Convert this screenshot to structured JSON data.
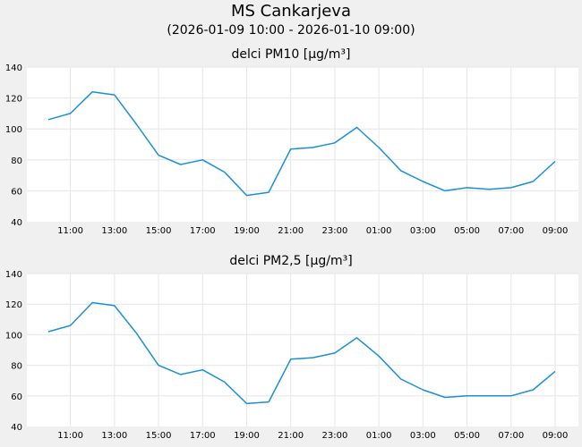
{
  "header": {
    "title": "MS Cankarjeva",
    "subtitle": "(2026-01-09 10:00 - 2026-01-10 09:00)"
  },
  "colors": {
    "line": "#1a8fd6",
    "plot_bg": "#ffffff",
    "grid": "#e6e6e6",
    "page_bg": "#f0f0f0"
  },
  "chart_data": [
    {
      "type": "line",
      "title": "delci PM10 [µg/m³]",
      "xlabel": "",
      "ylabel": "",
      "ylim": [
        40,
        140
      ],
      "yticks": [
        40,
        60,
        80,
        100,
        120,
        140
      ],
      "x": [
        "10:00",
        "11:00",
        "12:00",
        "13:00",
        "14:00",
        "15:00",
        "16:00",
        "17:00",
        "18:00",
        "19:00",
        "20:00",
        "21:00",
        "22:00",
        "23:00",
        "00:00",
        "01:00",
        "02:00",
        "03:00",
        "04:00",
        "05:00",
        "06:00",
        "07:00",
        "08:00",
        "09:00"
      ],
      "xtick_labels": [
        "11:00",
        "13:00",
        "15:00",
        "17:00",
        "19:00",
        "21:00",
        "23:00",
        "01:00",
        "03:00",
        "05:00",
        "07:00",
        "09:00"
      ],
      "series": [
        {
          "values": [
            106,
            110,
            124,
            122,
            103,
            83,
            77,
            80,
            72,
            57,
            59,
            87,
            88,
            91,
            101,
            88,
            73,
            66,
            60,
            62,
            61,
            62,
            66,
            79
          ]
        }
      ],
      "grid": true
    },
    {
      "type": "line",
      "title": "delci PM2,5 [µg/m³]",
      "xlabel": "",
      "ylabel": "",
      "ylim": [
        40,
        140
      ],
      "yticks": [
        40,
        60,
        80,
        100,
        120,
        140
      ],
      "x": [
        "10:00",
        "11:00",
        "12:00",
        "13:00",
        "14:00",
        "15:00",
        "16:00",
        "17:00",
        "18:00",
        "19:00",
        "20:00",
        "21:00",
        "22:00",
        "23:00",
        "00:00",
        "01:00",
        "02:00",
        "03:00",
        "04:00",
        "05:00",
        "06:00",
        "07:00",
        "08:00",
        "09:00"
      ],
      "xtick_labels": [
        "11:00",
        "13:00",
        "15:00",
        "17:00",
        "19:00",
        "21:00",
        "23:00",
        "01:00",
        "03:00",
        "05:00",
        "07:00",
        "09:00"
      ],
      "series": [
        {
          "values": [
            102,
            106,
            121,
            119,
            101,
            80,
            74,
            77,
            69,
            55,
            56,
            84,
            85,
            88,
            98,
            86,
            71,
            64,
            59,
            60,
            60,
            60,
            64,
            76
          ]
        }
      ],
      "grid": true
    }
  ]
}
